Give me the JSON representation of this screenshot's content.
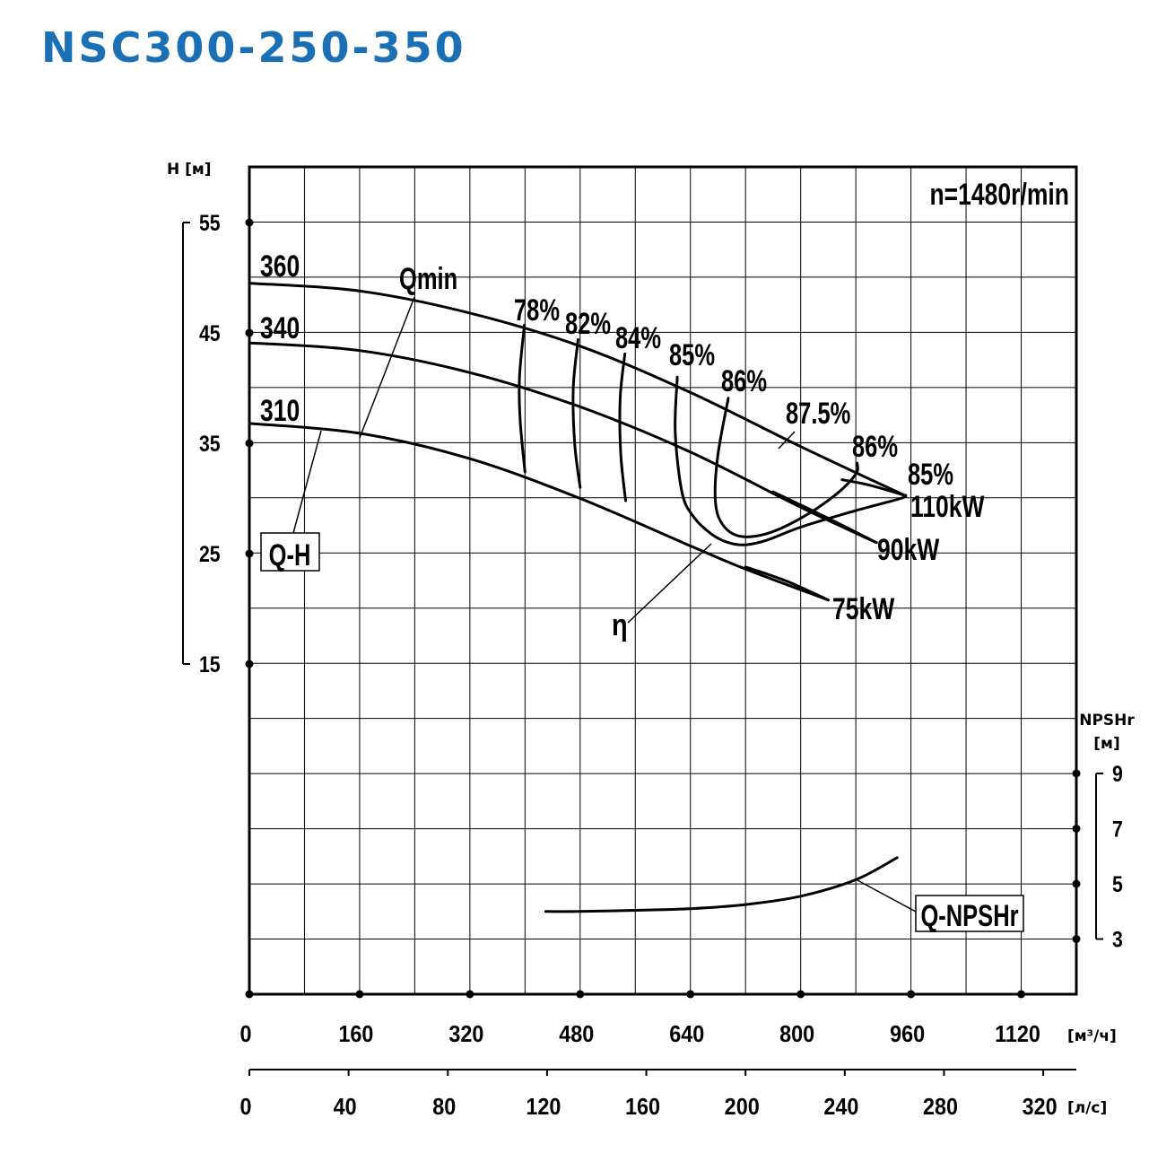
{
  "title": "NSC300-250-350",
  "colors": {
    "title": "#1a6fb5",
    "ink": "#000000"
  },
  "chart_data": {
    "type": "line",
    "speed_label": "n=1480r/min",
    "x_axis": {
      "label": "[м³/ч]",
      "range": [
        0,
        1200
      ],
      "ticks": [
        0,
        160,
        320,
        480,
        640,
        800,
        960,
        1120
      ],
      "minor_step": 80
    },
    "x2_axis": {
      "label": "[л/с]",
      "ticks": [
        0,
        40,
        80,
        120,
        160,
        200,
        240,
        280,
        320
      ]
    },
    "y_axis": {
      "label": "H [м]",
      "range": [
        15,
        55
      ],
      "ticks": [
        15,
        25,
        35,
        45,
        55
      ]
    },
    "y2_axis": {
      "label_line1": "NPSHr",
      "label_line2": "[м]",
      "range": [
        3,
        9
      ],
      "ticks": [
        3,
        5,
        7,
        9
      ]
    },
    "grid": true,
    "impeller_curves": [
      {
        "name": "360",
        "x": [
          0,
          160,
          320,
          480,
          640,
          800,
          950
        ],
        "y": [
          49.5,
          48.8,
          46.8,
          43.8,
          39.6,
          34.7,
          30.3
        ]
      },
      {
        "name": "340",
        "x": [
          0,
          160,
          320,
          480,
          640,
          800,
          910
        ],
        "y": [
          44.1,
          43.4,
          41.4,
          38.3,
          34.2,
          29.2,
          26.0
        ]
      },
      {
        "name": "310",
        "x": [
          0,
          160,
          320,
          480,
          640,
          720,
          840
        ],
        "y": [
          36.8,
          35.9,
          33.6,
          30.0,
          25.7,
          23.6,
          20.8
        ]
      }
    ],
    "qmin_label": "Qmin",
    "qh_label": "Q-H",
    "efficiency_label": "η",
    "efficiency_curves": [
      {
        "label": "78%",
        "points": [
          [
            399,
            45.7
          ],
          [
            392,
            41.0
          ],
          [
            393,
            37.0
          ],
          [
            400,
            32.4
          ]
        ]
      },
      {
        "label": "82%",
        "points": [
          [
            477,
            44.4
          ],
          [
            470,
            40.0
          ],
          [
            472,
            35.0
          ],
          [
            480,
            31.0
          ]
        ]
      },
      {
        "label": "84%",
        "points": [
          [
            545,
            43.1
          ],
          [
            538,
            39.0
          ],
          [
            539,
            34.0
          ],
          [
            546,
            29.8
          ]
        ]
      },
      {
        "label": "85%",
        "points": [
          [
            621,
            41.0
          ],
          [
            618,
            36.0
          ],
          [
            628,
            30.5
          ],
          [
            645,
            28.3
          ],
          [
            670,
            26.8
          ],
          [
            695,
            26.0
          ],
          [
            720,
            25.8
          ],
          [
            750,
            26.2
          ],
          [
            800,
            27.4
          ],
          [
            880,
            28.9
          ],
          [
            945,
            30.0
          ],
          [
            952,
            30.3
          ]
        ]
      },
      {
        "label": "86%",
        "points": [
          [
            695,
            39.1
          ],
          [
            680,
            34.0
          ],
          [
            676,
            30.0
          ],
          [
            685,
            27.8
          ],
          [
            710,
            26.6
          ],
          [
            750,
            26.8
          ],
          [
            800,
            28.2
          ],
          [
            850,
            30.3
          ],
          [
            880,
            32.2
          ],
          [
            882,
            33.2
          ]
        ]
      },
      {
        "label": "87.5%",
        "points": []
      }
    ],
    "power_curves": [
      {
        "label": "110kW",
        "points": [
          [
            950,
            30.3
          ],
          [
            900,
            31.2
          ],
          [
            860,
            31.7
          ]
        ]
      },
      {
        "label": "90kW",
        "points": [
          [
            910,
            26.0
          ],
          [
            840,
            28.2
          ],
          [
            760,
            30.6
          ]
        ]
      },
      {
        "label": "75kW",
        "points": [
          [
            840,
            20.8
          ],
          [
            780,
            22.5
          ],
          [
            720,
            23.8
          ]
        ]
      }
    ],
    "npsh_curve": {
      "label": "Q-NPSHr",
      "x": [
        430,
        480,
        560,
        640,
        720,
        800,
        880,
        940
      ],
      "y": [
        4.0,
        4.0,
        4.04,
        4.1,
        4.25,
        4.55,
        5.15,
        5.95
      ]
    }
  }
}
